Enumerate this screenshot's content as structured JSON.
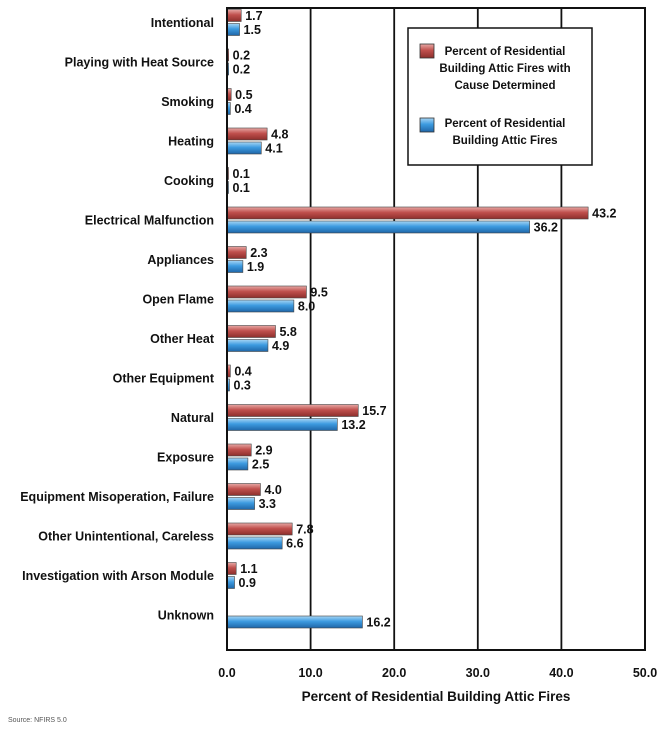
{
  "chart_data": {
    "type": "bar",
    "orientation": "horizontal",
    "categories": [
      "Intentional",
      "Playing with Heat Source",
      "Smoking",
      "Heating",
      "Cooking",
      "Electrical Malfunction",
      "Appliances",
      "Open Flame",
      "Other Heat",
      "Other Equipment",
      "Natural",
      "Exposure",
      "Equipment Misoperation, Failure",
      "Other Unintentional, Careless",
      "Investigation with Arson Module",
      "Unknown"
    ],
    "series": [
      {
        "name": "Percent of Residential Building Attic Fires with Cause Determined",
        "color": "#c0504d",
        "values": [
          1.7,
          0.2,
          0.5,
          4.8,
          0.1,
          43.2,
          2.3,
          9.5,
          5.8,
          0.4,
          15.7,
          2.9,
          4.0,
          7.8,
          1.1,
          null
        ],
        "labels": [
          "1.7",
          "0.2",
          "0.5",
          "4.8",
          "0.1",
          "43.2",
          "2.3",
          "9.5",
          "5.8",
          "0.4",
          "15.7",
          "2.9",
          "4.0",
          "7.8",
          "1.1",
          ""
        ]
      },
      {
        "name": "Percent of Residential Building Attic Fires",
        "color": "#3d9be0",
        "values": [
          1.5,
          0.2,
          0.4,
          4.1,
          0.1,
          36.2,
          1.9,
          8.0,
          4.9,
          0.3,
          13.2,
          2.5,
          3.3,
          6.6,
          0.9,
          16.2
        ],
        "labels": [
          "1.5",
          "0.2",
          "0.4",
          "4.1",
          "0.1",
          "36.2",
          "1.9",
          "8.0",
          "4.9",
          "0.3",
          "13.2",
          "2.5",
          "3.3",
          "6.6",
          "0.9",
          "16.2"
        ]
      }
    ],
    "xlabel": "Percent of Residential Building Attic Fires",
    "xlim": [
      0,
      50
    ],
    "xticks": [
      0,
      10,
      20,
      30,
      40,
      50
    ],
    "xtick_labels": [
      "0.0",
      "10.0",
      "20.0",
      "30.0",
      "40.0",
      "50.0"
    ],
    "grid": "vertical",
    "legend_position": "top-right",
    "legend": [
      [
        "Percent of Residential",
        "Building Attic Fires with",
        "Cause Determined"
      ],
      [
        "Percent of Residential",
        "Building Attic Fires"
      ]
    ]
  },
  "source_note": "Source: NFIRS 5.0"
}
